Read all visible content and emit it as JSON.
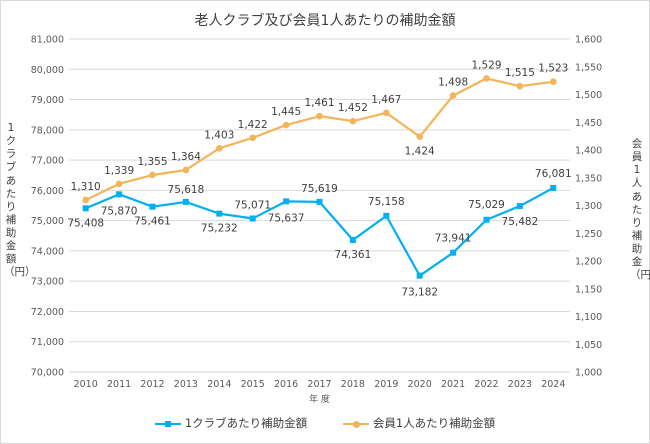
{
  "chart_data": {
    "type": "line",
    "title": "老人クラブ及び会員1人あたりの補助金額",
    "xlabel": "年 度",
    "ylabel_left": "1クラブあたり補助金額（円）",
    "ylabel_right": "会員1人あたり補助金（円）",
    "categories": [
      "2010",
      "2011",
      "2012",
      "2013",
      "2014",
      "2015",
      "2016",
      "2017",
      "2018",
      "2019",
      "2020",
      "2021",
      "2022",
      "2023",
      "2024"
    ],
    "y_left": {
      "min": 70000,
      "max": 81000,
      "step": 1000,
      "ticks": [
        "70,000",
        "71,000",
        "72,000",
        "73,000",
        "74,000",
        "75,000",
        "76,000",
        "77,000",
        "78,000",
        "79,000",
        "80,000",
        "81,000"
      ]
    },
    "y_right": {
      "min": 1000,
      "max": 1600,
      "step": 50,
      "ticks": [
        "1,000",
        "1,050",
        "1,100",
        "1,150",
        "1,200",
        "1,250",
        "1,300",
        "1,350",
        "1,400",
        "1,450",
        "1,500",
        "1,550",
        "1,600"
      ]
    },
    "series": [
      {
        "name": "1クラブあたり補助金額",
        "axis": "left",
        "color": "#00b0f0",
        "marker": "square",
        "values": [
          75408,
          75870,
          75461,
          75618,
          75232,
          75071,
          75637,
          75619,
          74361,
          75158,
          73182,
          73941,
          75029,
          75482,
          76081
        ],
        "labels": [
          "75,408",
          "75,870",
          "75,461",
          "75,618",
          "75,232",
          "75,071",
          "75,637",
          "75,619",
          "74,361",
          "75,158",
          "73,182",
          "73,941",
          "75,029",
          "75,482",
          "76,081"
        ]
      },
      {
        "name": "会員1人あたり補助金額",
        "axis": "right",
        "color": "#f4b459",
        "marker": "circle",
        "values": [
          1310,
          1339,
          1355,
          1364,
          1403,
          1422,
          1445,
          1461,
          1452,
          1467,
          1424,
          1498,
          1529,
          1515,
          1523
        ],
        "labels": [
          "1,310",
          "1,339",
          "1,355",
          "1,364",
          "1,403",
          "1,422",
          "1,445",
          "1,461",
          "1,452",
          "1,467",
          "1,424",
          "1,498",
          "1,529",
          "1,515",
          "1,523"
        ]
      }
    ],
    "legend": "bottom"
  }
}
